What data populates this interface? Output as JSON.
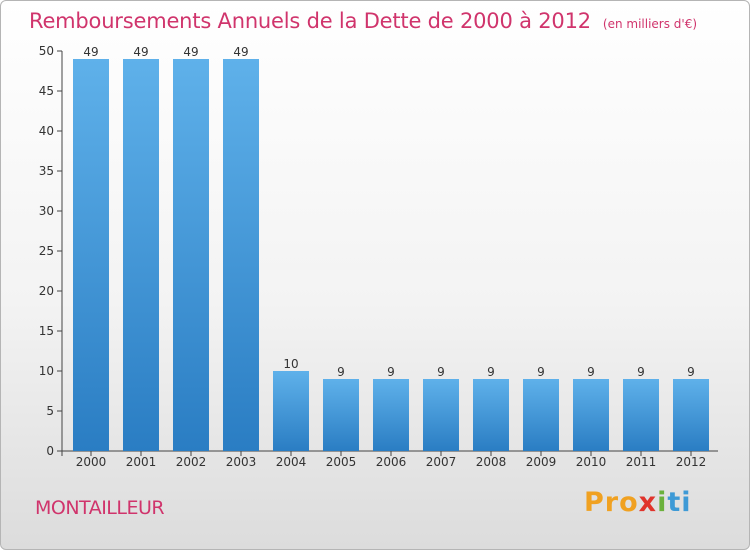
{
  "title": "Remboursements Annuels de la Dette de 2000 à 2012",
  "unit": "(en milliers d'€)",
  "town": "MONTAILLEUR",
  "logo": {
    "p1": "Pro",
    "p2": "x",
    "p3": "i",
    "p4": "ti",
    "colors": [
      "#f0a121",
      "#e0342c",
      "#6bb13c",
      "#3e9ad6"
    ]
  },
  "colors": {
    "bar_light": "#5fb1ea",
    "bar_dark": "#2a7dc3",
    "title": "#d0346c"
  },
  "chart_data": {
    "type": "bar",
    "title": "Remboursements Annuels de la Dette de 2000 à 2012",
    "subtitle": "(en milliers d'€)",
    "categories": [
      "2000",
      "2001",
      "2002",
      "2003",
      "2004",
      "2005",
      "2006",
      "2007",
      "2008",
      "2009",
      "2010",
      "2011",
      "2012"
    ],
    "values": [
      49,
      49,
      49,
      49,
      10,
      9,
      9,
      9,
      9,
      9,
      9,
      9,
      9
    ],
    "data_labels": [
      "49",
      "49",
      "49",
      "49",
      "10",
      "9",
      "9",
      "9",
      "9",
      "9",
      "9",
      "9",
      "9"
    ],
    "ylim": [
      0,
      50
    ],
    "yticks": [
      0,
      5,
      10,
      15,
      20,
      25,
      30,
      35,
      40,
      45,
      50
    ],
    "grid": false,
    "legend": "none"
  }
}
